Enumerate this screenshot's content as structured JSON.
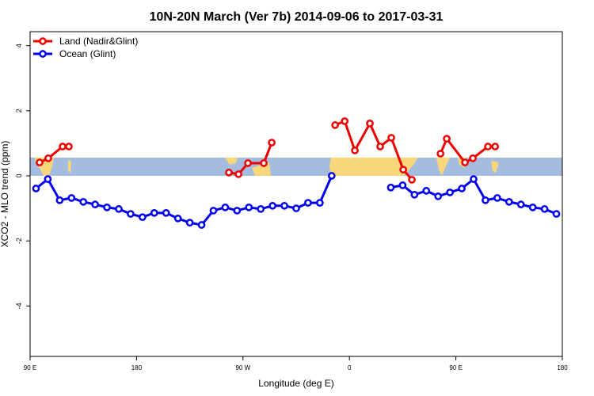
{
  "chart_data": {
    "type": "line",
    "title": "10N-20N March (Ver 7b)   2014-09-06 to 2017-03-31",
    "x_label": "Longitude (deg E)",
    "y_label": "XCO2 - MLO trend (ppm)",
    "xlim": [
      90,
      540
    ],
    "ylim": [
      -5.55,
      4.43
    ],
    "xticks": [
      {
        "value": 90,
        "label": "90 E"
      },
      180,
      {
        "value": 270,
        "label": "90 W"
      },
      {
        "value": 360,
        "label": "0"
      },
      {
        "value": 450,
        "label": "90 E"
      },
      180
    ],
    "yticks": [
      4,
      2,
      0,
      -2,
      -4
    ],
    "legend": "top-left",
    "series": [
      {
        "name": "Land (Nadir&Glint)",
        "color": "#ee0000",
        "x": [
          98,
          105.4,
          117.5,
          122.8,
          null,
          258.1,
          266.2,
          274.2,
          287.6,
          294.3,
          null,
          347.9,
          356,
          364.6,
          377.3,
          386,
          395.4,
          405.5,
          412.8,
          null,
          437,
          442.3,
          457.7,
          464.4,
          477.1,
          483.2
        ],
        "values": [
          0.41,
          0.54,
          0.9,
          0.9,
          null,
          0.1,
          0.05,
          0.39,
          0.39,
          1.02,
          null,
          1.56,
          1.68,
          0.78,
          1.61,
          0.9,
          1.17,
          0.19,
          -0.12,
          null,
          0.68,
          1.14,
          0.41,
          0.54,
          0.9,
          0.9
        ]
      },
      {
        "name": "Ocean (Glint)",
        "color": "#0000ee",
        "x": [
          95,
          105,
          115,
          125,
          135,
          145,
          155,
          165,
          175,
          185,
          195,
          205,
          215,
          225,
          235,
          245,
          255,
          265,
          275,
          285,
          295,
          305,
          315,
          325,
          335,
          345,
          null,
          395,
          405,
          415,
          425,
          435,
          445,
          455,
          465,
          475,
          485,
          495,
          505,
          515,
          525,
          535
        ],
        "values": [
          -0.39,
          -0.1,
          -0.75,
          -0.68,
          -0.8,
          -0.88,
          -0.97,
          -1.02,
          -1.17,
          -1.27,
          -1.14,
          -1.14,
          -1.31,
          -1.44,
          -1.51,
          -1.07,
          -0.97,
          -1.07,
          -0.97,
          -1.02,
          -0.92,
          -0.92,
          -1.0,
          -0.83,
          -0.83,
          0.0,
          null,
          -0.36,
          -0.29,
          -0.58,
          -0.46,
          -0.63,
          -0.51,
          -0.39,
          -0.1,
          -0.75,
          -0.68,
          -0.8,
          -0.88,
          -0.97,
          -1.02,
          -1.17
        ]
      }
    ]
  }
}
